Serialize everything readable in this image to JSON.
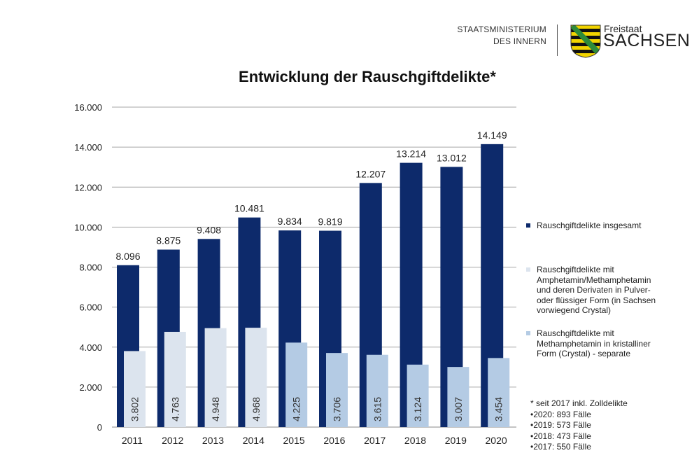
{
  "header": {
    "ministry_line1": "STAATSMINISTERIUM",
    "ministry_line2": "DES INNERN",
    "brand_small": "Freistaat",
    "brand_large": "SACHSEN",
    "logo_icon": "saxony-coat-of-arms-icon"
  },
  "colors": {
    "total": "#0d2a6b",
    "powder": "#dce4ee",
    "crystal": "#b4cbe4",
    "grid": "#a6a6a6"
  },
  "legend": [
    {
      "label": "Rauschgiftdelikte insgesamt",
      "color": "#0d2a6b"
    },
    {
      "label": "Rauschgiftdelikte mit Amphetamin/Methamphetamin und deren Derivaten in Pulver- oder flüssiger Form (in Sachsen vorwiegend Crystal)",
      "color": "#dce4ee"
    },
    {
      "label": "Rauschgiftdelikte mit Methamphetamin in kristalliner Form (Crystal) - separate",
      "color": "#b4cbe4"
    }
  ],
  "footnote": {
    "lines": [
      "* seit 2017 inkl. Zolldelikte",
      "•2020: 893 Fälle",
      "•2019: 573 Fälle",
      "•2018: 473 Fälle",
      "•2017: 550 Fälle"
    ]
  },
  "chart_data": {
    "type": "bar",
    "title": "Entwicklung der Rauschgiftdelikte*",
    "xlabel": "",
    "ylabel": "",
    "categories": [
      "2011",
      "2012",
      "2013",
      "2014",
      "2015",
      "2016",
      "2017",
      "2018",
      "2019",
      "2020"
    ],
    "ylim": [
      0,
      16000
    ],
    "yticks": [
      0,
      2000,
      4000,
      6000,
      8000,
      10000,
      12000,
      14000,
      16000
    ],
    "ytick_labels": [
      "0",
      "2.000",
      "4.000",
      "6.000",
      "8.000",
      "10.000",
      "12.000",
      "14.000",
      "16.000"
    ],
    "grid": true,
    "legend_position": "right",
    "series": [
      {
        "name": "Rauschgiftdelikte insgesamt",
        "values": [
          8096,
          8875,
          9408,
          10481,
          9834,
          9819,
          12207,
          13214,
          13012,
          14149
        ],
        "labels": [
          "8.096",
          "8.875",
          "9.408",
          "10.481",
          "9.834",
          "9.819",
          "12.207",
          "13.214",
          "13.012",
          "14.149"
        ]
      },
      {
        "name": "Amphetamin/Methamphetamin (Pulver/flüssig)",
        "values": [
          3802,
          4763,
          4948,
          4968,
          null,
          null,
          null,
          null,
          null,
          null
        ],
        "labels": [
          "3.802",
          "4.763",
          "4.948",
          "4.968",
          null,
          null,
          null,
          null,
          null,
          null
        ]
      },
      {
        "name": "Methamphetamin kristallin (Crystal) - separate",
        "values": [
          null,
          null,
          null,
          null,
          4225,
          3706,
          3615,
          3124,
          3007,
          3454
        ],
        "labels": [
          null,
          null,
          null,
          null,
          "4.225",
          "3.706",
          "3.615",
          "3.124",
          "3.007",
          "3.454"
        ]
      }
    ]
  }
}
